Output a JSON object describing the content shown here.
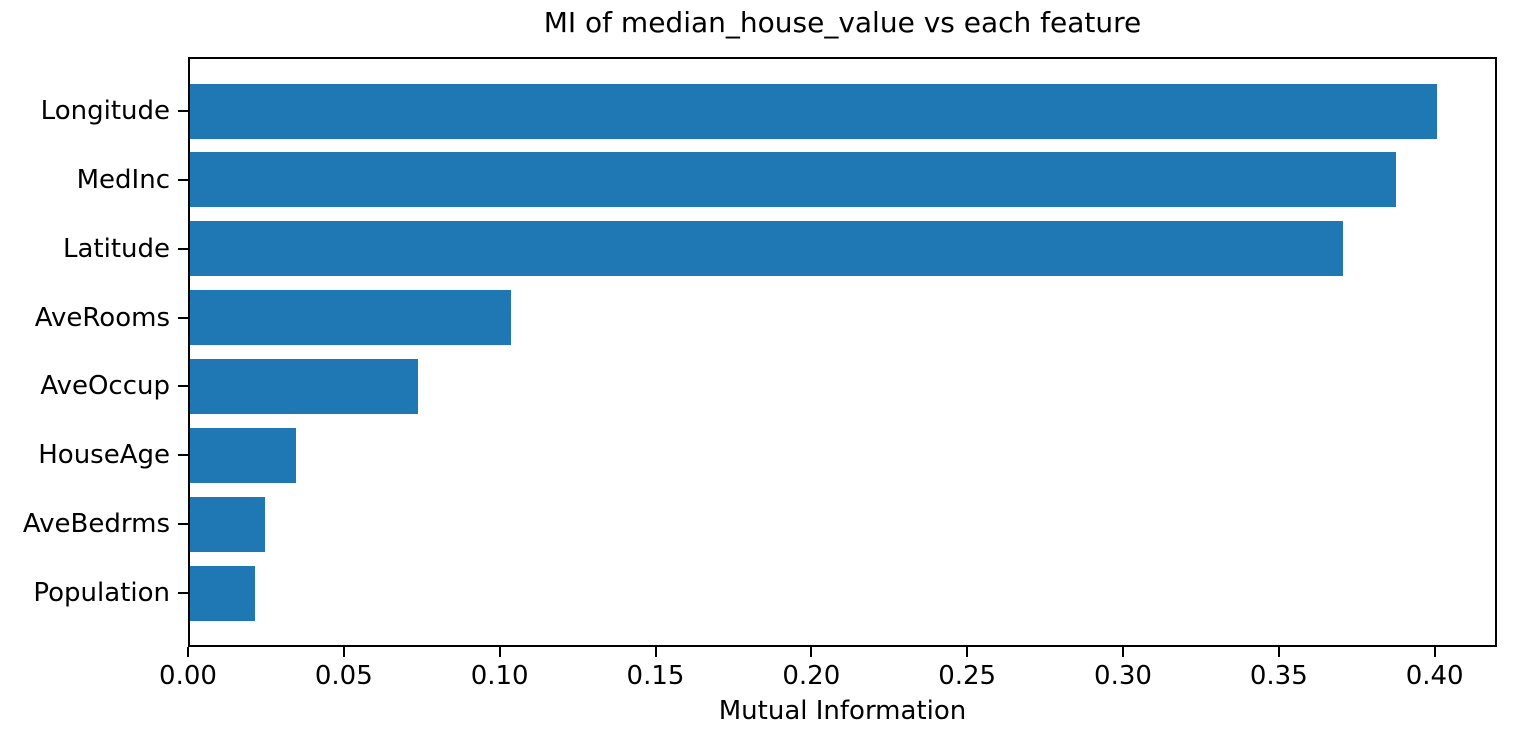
{
  "chart_data": {
    "type": "bar",
    "orientation": "horizontal",
    "title": "MI of median_house_value vs each feature",
    "xlabel": "Mutual Information",
    "ylabel": "",
    "categories": [
      "Longitude",
      "MedInc",
      "Latitude",
      "AveRooms",
      "AveOccup",
      "HouseAge",
      "AveBedrms",
      "Population"
    ],
    "values": [
      0.4,
      0.387,
      0.37,
      0.103,
      0.073,
      0.034,
      0.024,
      0.021
    ],
    "xlim": [
      0,
      0.42
    ],
    "xticks": [
      0.0,
      0.05,
      0.1,
      0.15,
      0.2,
      0.25,
      0.3,
      0.35,
      0.4
    ],
    "xtick_labels": [
      "0.00",
      "0.05",
      "0.10",
      "0.15",
      "0.20",
      "0.25",
      "0.30",
      "0.35",
      "0.40"
    ],
    "bar_color": "#1f77b4",
    "text_color": "#000000",
    "background_color": "#ffffff",
    "grid": false,
    "legend": null
  }
}
